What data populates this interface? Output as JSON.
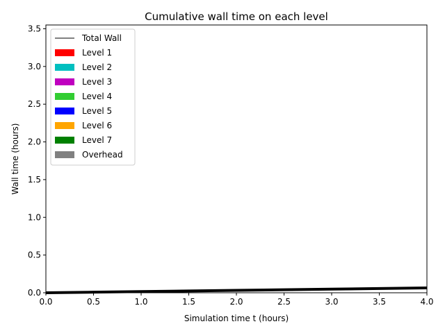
{
  "chart_data": {
    "type": "area",
    "title": "Cumulative wall time on each level",
    "xlabel": "Simulation time t (hours)",
    "ylabel": "Wall time (hours)",
    "xlim": [
      0,
      4
    ],
    "ylim": [
      0,
      3.55
    ],
    "xticks": [
      "0.0",
      "0.5",
      "1.0",
      "1.5",
      "2.0",
      "2.5",
      "3.0",
      "3.5",
      "4.0"
    ],
    "yticks": [
      "0.0",
      "0.5",
      "1.0",
      "1.5",
      "2.0",
      "2.5",
      "3.0",
      "3.5"
    ],
    "grid": false,
    "legend_position": "top-left",
    "x": [
      0,
      0.5,
      1.0,
      1.5,
      2.0,
      2.5,
      3.0,
      3.5,
      4.0
    ],
    "series": [
      {
        "name": "Total Wall",
        "kind": "line",
        "color": "#000000",
        "values": [
          0,
          0.008,
          0.016,
          0.024,
          0.032,
          0.04,
          0.048,
          0.056,
          0.064
        ]
      },
      {
        "name": "Level 1",
        "kind": "area",
        "color": "#ff0000",
        "values": [
          0,
          0.0005,
          0.001,
          0.0015,
          0.002,
          0.0025,
          0.003,
          0.0035,
          0.004
        ]
      },
      {
        "name": "Level 2",
        "kind": "area",
        "color": "#00bfbf",
        "values": [
          0,
          0,
          0,
          0,
          0,
          0,
          0,
          0,
          0
        ]
      },
      {
        "name": "Level 3",
        "kind": "area",
        "color": "#bf00bf",
        "values": [
          0,
          0,
          0,
          0,
          0,
          0,
          0,
          0,
          0
        ]
      },
      {
        "name": "Level 4",
        "kind": "area",
        "color": "#32cd32",
        "values": [
          0,
          0,
          0,
          0,
          0,
          0,
          0,
          0,
          0
        ]
      },
      {
        "name": "Level 5",
        "kind": "area",
        "color": "#0000ff",
        "values": [
          0,
          0,
          0,
          0,
          0,
          0,
          0,
          0,
          0
        ]
      },
      {
        "name": "Level 6",
        "kind": "area",
        "color": "#ffa500",
        "values": [
          0,
          0,
          0,
          0,
          0,
          0,
          0,
          0,
          0
        ]
      },
      {
        "name": "Level 7",
        "kind": "area",
        "color": "#008000",
        "values": [
          0,
          0,
          0,
          0,
          0,
          0,
          0,
          0,
          0
        ]
      },
      {
        "name": "Overhead",
        "kind": "area",
        "color": "#808080",
        "values": [
          0,
          0,
          0,
          0,
          0,
          0,
          0,
          0,
          0
        ]
      }
    ]
  }
}
